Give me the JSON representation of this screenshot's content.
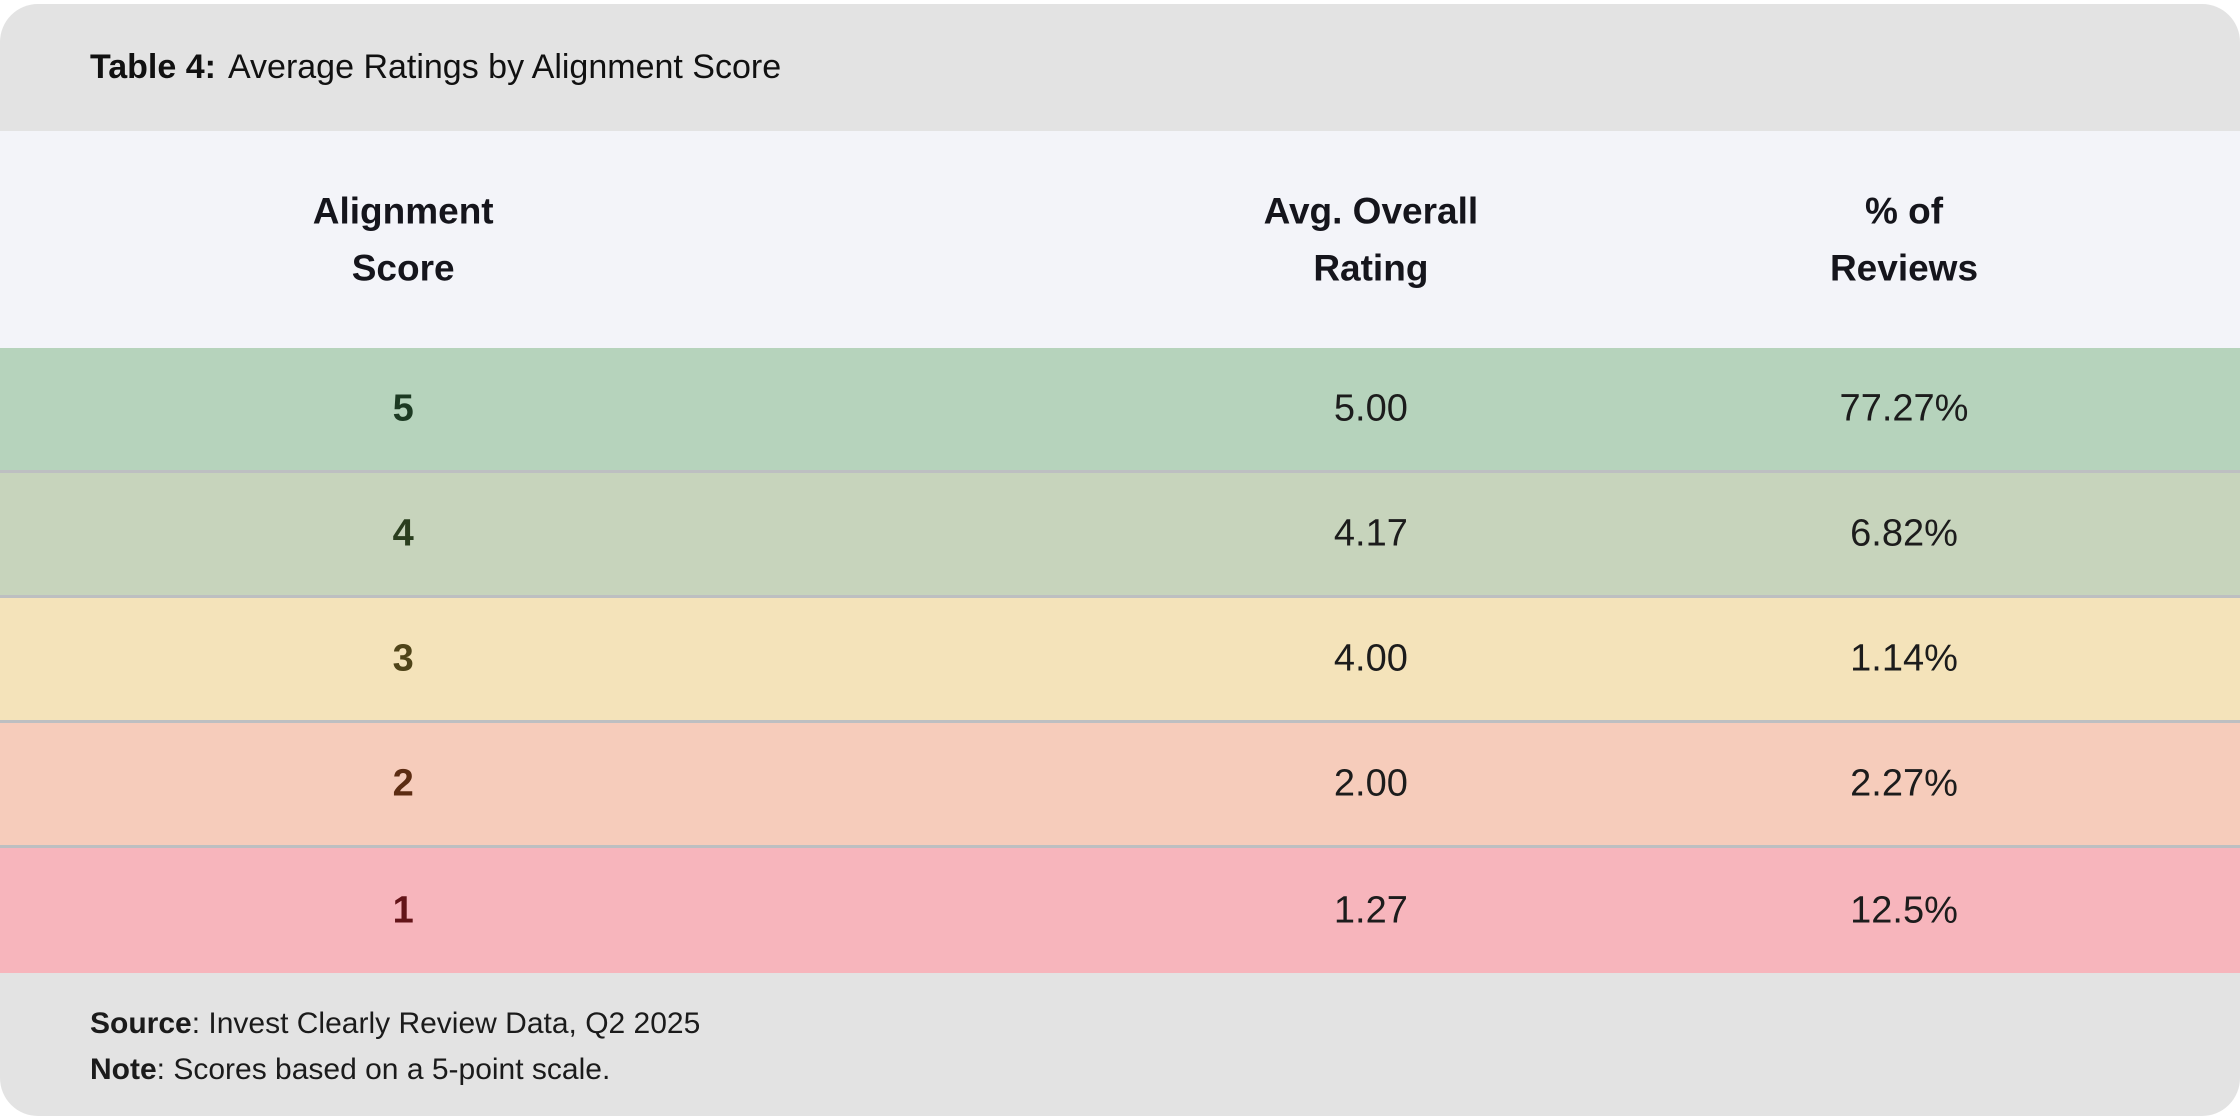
{
  "caption": {
    "label": "Table 4:",
    "text": "Average Ratings by Alignment Score"
  },
  "table": {
    "columns": [
      {
        "line1": "Alignment",
        "line2": "Score"
      },
      {
        "line1": "Avg. Overall",
        "line2": "Rating"
      },
      {
        "line1": "% of",
        "line2": "Reviews"
      }
    ],
    "rows": [
      {
        "score": "5",
        "rating": "5.00",
        "percent": "77.27%",
        "bg": "#b6d3bc",
        "score_color": "#1d3a23"
      },
      {
        "score": "4",
        "rating": "4.17",
        "percent": "6.82%",
        "bg": "#c7d4bc",
        "score_color": "#2a3e1e"
      },
      {
        "score": "3",
        "rating": "4.00",
        "percent": "1.14%",
        "bg": "#f4e3ba",
        "score_color": "#4f4419"
      },
      {
        "score": "2",
        "rating": "2.00",
        "percent": "2.27%",
        "bg": "#f6ccbb",
        "score_color": "#5c2c12"
      },
      {
        "score": "1",
        "rating": "1.27",
        "percent": "12.5%",
        "bg": "#f7b5bc",
        "score_color": "#631418"
      }
    ]
  },
  "footer": {
    "source_label": "Source",
    "source_rest": ": Invest Clearly Review Data, Q2 2025",
    "note_label": "Note",
    "note_rest": ": Scores based on a 5-point scale."
  },
  "colors": {
    "caption_band": "#e3e3e3",
    "header_band": "#f3f4f9",
    "footer_band": "#e3e3e3",
    "row_separator": "#bdbfc1",
    "body_text": "#1c1c1c"
  },
  "chart_data": {
    "type": "table",
    "title": "Table 4: Average Ratings by Alignment Score",
    "columns": [
      "Alignment Score",
      "Avg. Overall Rating",
      "% of Reviews"
    ],
    "rows": [
      [
        5,
        5.0,
        "77.27%"
      ],
      [
        4,
        4.17,
        "6.82%"
      ],
      [
        3,
        4.0,
        "1.14%"
      ],
      [
        2,
        2.0,
        "2.27%"
      ],
      [
        1,
        1.27,
        "12.5%"
      ]
    ],
    "source": "Invest Clearly Review Data, Q2 2025",
    "note": "Scores based on a 5-point scale."
  }
}
